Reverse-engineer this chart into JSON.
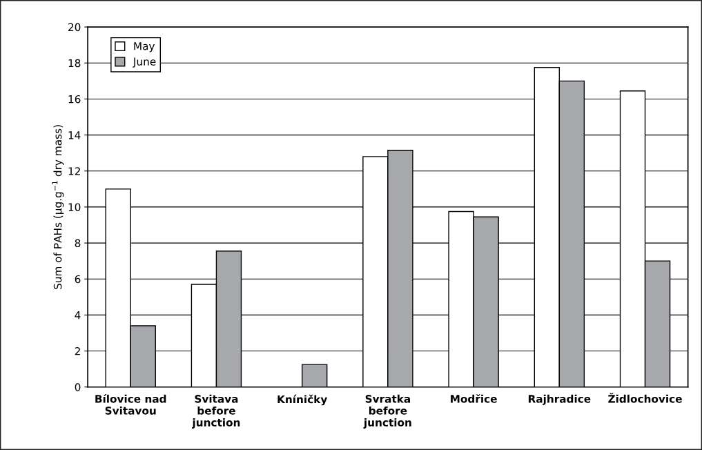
{
  "chart_data": {
    "type": "bar",
    "ylabel": "Sum of PAHs (µg.g$^{−1}$ dry mass)",
    "categories": [
      "Bílovice nad\nSvitavou",
      "Svitava\nbefore\njunction",
      "Kníničky",
      "Svratka\nbefore\njunction",
      "Modřice",
      "Rajhradice",
      "Židlochovice"
    ],
    "series": [
      {
        "name": "May",
        "color": "#ffffff",
        "values": [
          11.0,
          5.7,
          null,
          12.8,
          9.75,
          17.75,
          16.45
        ]
      },
      {
        "name": "June",
        "color": "#a7a8ac",
        "values": [
          3.4,
          7.55,
          1.25,
          13.15,
          9.45,
          17.0,
          7.0
        ]
      }
    ],
    "ylim": [
      0,
      20
    ],
    "yticks": [
      0,
      2,
      4,
      6,
      8,
      10,
      12,
      14,
      16,
      18,
      20
    ],
    "grid": "y",
    "legend": "top left"
  }
}
